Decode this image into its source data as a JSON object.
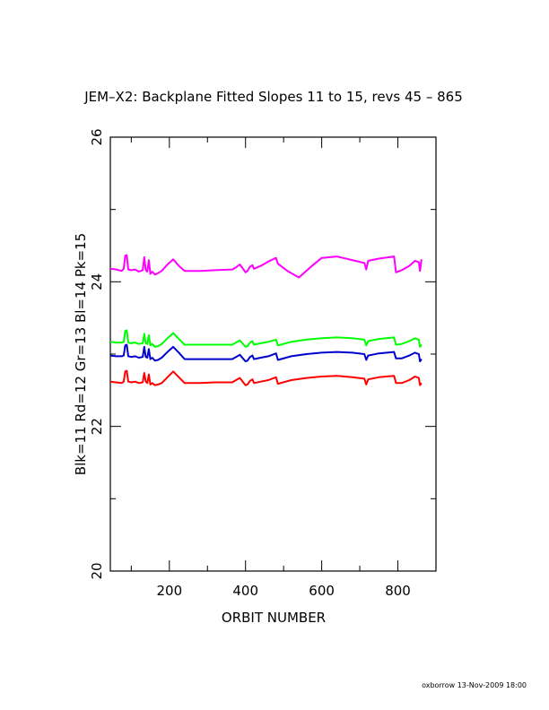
{
  "chart_data": {
    "type": "line",
    "title": "JEM–X2: Backplane Fitted Slopes 11 to 15, revs 45 – 865",
    "xlabel": "ORBIT NUMBER",
    "ylabel": "Blk=11 Rd=12 Gr=13 Bl=14 Pk=15",
    "xlim": [
      45,
      900
    ],
    "ylim": [
      20,
      26
    ],
    "x_ticks": [
      200,
      400,
      600,
      800
    ],
    "y_ticks": [
      20,
      22,
      24,
      26
    ],
    "grid": false,
    "series": [
      {
        "color": "#ff0000",
        "points": [
          [
            45,
            22.62
          ],
          [
            60,
            22.61
          ],
          [
            75,
            22.6
          ],
          [
            80,
            22.62
          ],
          [
            84,
            22.76
          ],
          [
            88,
            22.77
          ],
          [
            92,
            22.62
          ],
          [
            100,
            22.61
          ],
          [
            110,
            22.62
          ],
          [
            120,
            22.6
          ],
          [
            130,
            22.61
          ],
          [
            134,
            22.74
          ],
          [
            138,
            22.62
          ],
          [
            142,
            22.6
          ],
          [
            146,
            22.72
          ],
          [
            150,
            22.58
          ],
          [
            155,
            22.6
          ],
          [
            162,
            22.57
          ],
          [
            170,
            22.58
          ],
          [
            180,
            22.6
          ],
          [
            195,
            22.68
          ],
          [
            210,
            22.76
          ],
          [
            225,
            22.68
          ],
          [
            240,
            22.6
          ],
          [
            280,
            22.6
          ],
          [
            320,
            22.61
          ],
          [
            365,
            22.61
          ],
          [
            375,
            22.64
          ],
          [
            385,
            22.67
          ],
          [
            400,
            22.57
          ],
          [
            405,
            22.58
          ],
          [
            412,
            22.63
          ],
          [
            418,
            22.65
          ],
          [
            422,
            22.6
          ],
          [
            440,
            22.62
          ],
          [
            460,
            22.64
          ],
          [
            480,
            22.68
          ],
          [
            485,
            22.59
          ],
          [
            520,
            22.64
          ],
          [
            560,
            22.67
          ],
          [
            600,
            22.69
          ],
          [
            640,
            22.7
          ],
          [
            680,
            22.68
          ],
          [
            712,
            22.66
          ],
          [
            717,
            22.58
          ],
          [
            722,
            22.65
          ],
          [
            750,
            22.68
          ],
          [
            790,
            22.7
          ],
          [
            795,
            22.6
          ],
          [
            810,
            22.6
          ],
          [
            830,
            22.64
          ],
          [
            845,
            22.69
          ],
          [
            855,
            22.67
          ],
          [
            858,
            22.57
          ],
          [
            862,
            22.6
          ]
        ]
      },
      {
        "color": "#0000cc",
        "points": [
          [
            45,
            22.98
          ],
          [
            60,
            22.97
          ],
          [
            75,
            22.97
          ],
          [
            80,
            22.98
          ],
          [
            84,
            23.12
          ],
          [
            88,
            23.13
          ],
          [
            92,
            22.97
          ],
          [
            100,
            22.96
          ],
          [
            110,
            22.97
          ],
          [
            120,
            22.95
          ],
          [
            130,
            22.96
          ],
          [
            134,
            23.1
          ],
          [
            138,
            22.96
          ],
          [
            142,
            22.95
          ],
          [
            146,
            23.07
          ],
          [
            150,
            22.93
          ],
          [
            155,
            22.95
          ],
          [
            162,
            22.91
          ],
          [
            170,
            22.92
          ],
          [
            180,
            22.95
          ],
          [
            195,
            23.03
          ],
          [
            210,
            23.1
          ],
          [
            225,
            23.02
          ],
          [
            240,
            22.93
          ],
          [
            280,
            22.93
          ],
          [
            320,
            22.93
          ],
          [
            365,
            22.93
          ],
          [
            375,
            22.96
          ],
          [
            385,
            22.99
          ],
          [
            400,
            22.9
          ],
          [
            405,
            22.91
          ],
          [
            412,
            22.96
          ],
          [
            418,
            22.98
          ],
          [
            422,
            22.93
          ],
          [
            440,
            22.95
          ],
          [
            460,
            22.97
          ],
          [
            480,
            23.01
          ],
          [
            485,
            22.92
          ],
          [
            520,
            22.97
          ],
          [
            560,
            23.0
          ],
          [
            600,
            23.02
          ],
          [
            640,
            23.03
          ],
          [
            680,
            23.02
          ],
          [
            712,
            23.0
          ],
          [
            717,
            22.92
          ],
          [
            722,
            22.98
          ],
          [
            750,
            23.01
          ],
          [
            790,
            23.03
          ],
          [
            795,
            22.94
          ],
          [
            810,
            22.94
          ],
          [
            830,
            22.98
          ],
          [
            845,
            23.02
          ],
          [
            855,
            23.0
          ],
          [
            858,
            22.9
          ],
          [
            862,
            22.93
          ]
        ]
      },
      {
        "color": "#00ff00",
        "points": [
          [
            45,
            23.17
          ],
          [
            60,
            23.16
          ],
          [
            75,
            23.16
          ],
          [
            80,
            23.17
          ],
          [
            84,
            23.32
          ],
          [
            88,
            23.33
          ],
          [
            92,
            23.16
          ],
          [
            100,
            23.15
          ],
          [
            110,
            23.16
          ],
          [
            120,
            23.14
          ],
          [
            130,
            23.15
          ],
          [
            134,
            23.28
          ],
          [
            138,
            23.15
          ],
          [
            142,
            23.14
          ],
          [
            146,
            23.26
          ],
          [
            150,
            23.12
          ],
          [
            155,
            23.14
          ],
          [
            162,
            23.1
          ],
          [
            170,
            23.11
          ],
          [
            180,
            23.14
          ],
          [
            195,
            23.22
          ],
          [
            210,
            23.29
          ],
          [
            225,
            23.21
          ],
          [
            240,
            23.13
          ],
          [
            280,
            23.13
          ],
          [
            320,
            23.13
          ],
          [
            365,
            23.13
          ],
          [
            375,
            23.16
          ],
          [
            385,
            23.19
          ],
          [
            400,
            23.1
          ],
          [
            405,
            23.11
          ],
          [
            412,
            23.16
          ],
          [
            418,
            23.18
          ],
          [
            422,
            23.13
          ],
          [
            440,
            23.15
          ],
          [
            460,
            23.17
          ],
          [
            480,
            23.2
          ],
          [
            485,
            23.12
          ],
          [
            520,
            23.17
          ],
          [
            560,
            23.2
          ],
          [
            600,
            23.22
          ],
          [
            640,
            23.23
          ],
          [
            680,
            23.22
          ],
          [
            712,
            23.2
          ],
          [
            717,
            23.12
          ],
          [
            722,
            23.18
          ],
          [
            750,
            23.21
          ],
          [
            790,
            23.23
          ],
          [
            795,
            23.13
          ],
          [
            810,
            23.14
          ],
          [
            830,
            23.18
          ],
          [
            845,
            23.22
          ],
          [
            855,
            23.2
          ],
          [
            858,
            23.1
          ],
          [
            862,
            23.13
          ]
        ]
      },
      {
        "color": "#ff00ff",
        "points": [
          [
            45,
            24.18
          ],
          [
            60,
            24.17
          ],
          [
            75,
            24.15
          ],
          [
            80,
            24.18
          ],
          [
            84,
            24.36
          ],
          [
            88,
            24.37
          ],
          [
            92,
            24.17
          ],
          [
            100,
            24.16
          ],
          [
            110,
            24.17
          ],
          [
            120,
            24.14
          ],
          [
            130,
            24.16
          ],
          [
            134,
            24.34
          ],
          [
            138,
            24.16
          ],
          [
            142,
            24.14
          ],
          [
            146,
            24.3
          ],
          [
            150,
            24.11
          ],
          [
            155,
            24.14
          ],
          [
            162,
            24.1
          ],
          [
            170,
            24.12
          ],
          [
            180,
            24.15
          ],
          [
            195,
            24.24
          ],
          [
            210,
            24.31
          ],
          [
            225,
            24.22
          ],
          [
            240,
            24.15
          ],
          [
            280,
            24.15
          ],
          [
            320,
            24.16
          ],
          [
            365,
            24.17
          ],
          [
            375,
            24.2
          ],
          [
            385,
            24.24
          ],
          [
            400,
            24.13
          ],
          [
            405,
            24.15
          ],
          [
            412,
            24.21
          ],
          [
            418,
            24.23
          ],
          [
            422,
            24.18
          ],
          [
            440,
            24.22
          ],
          [
            460,
            24.28
          ],
          [
            480,
            24.33
          ],
          [
            485,
            24.25
          ],
          [
            510,
            24.15
          ],
          [
            540,
            24.06
          ],
          [
            570,
            24.2
          ],
          [
            600,
            24.33
          ],
          [
            640,
            24.35
          ],
          [
            680,
            24.3
          ],
          [
            712,
            24.26
          ],
          [
            717,
            24.17
          ],
          [
            722,
            24.29
          ],
          [
            750,
            24.32
          ],
          [
            790,
            24.35
          ],
          [
            795,
            24.13
          ],
          [
            810,
            24.16
          ],
          [
            830,
            24.22
          ],
          [
            845,
            24.29
          ],
          [
            855,
            24.27
          ],
          [
            858,
            24.15
          ],
          [
            862,
            24.31
          ]
        ]
      }
    ]
  },
  "footer": "oxborrow 13-Nov-2009 18:00"
}
